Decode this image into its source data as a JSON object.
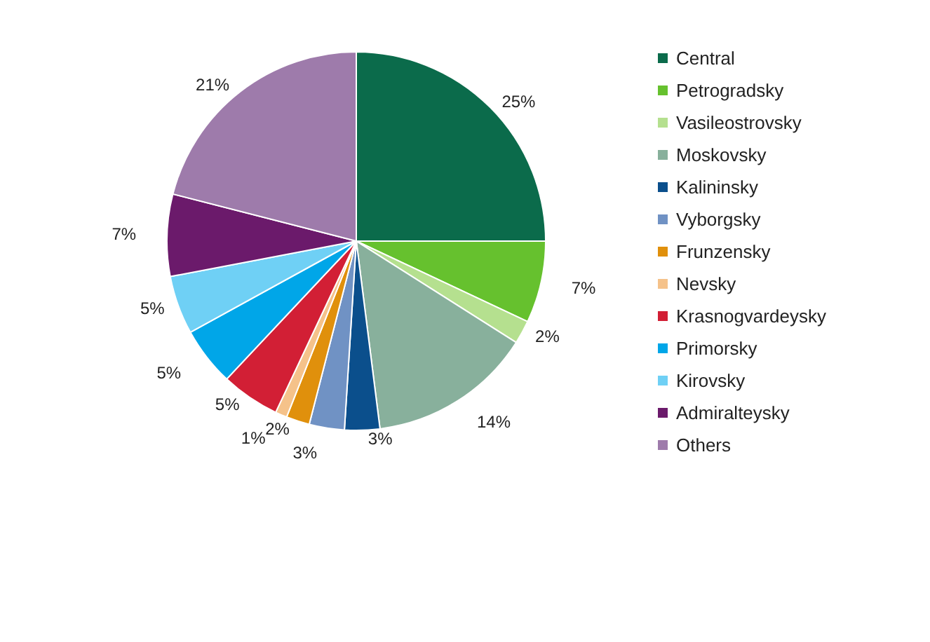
{
  "chart_data": {
    "type": "pie",
    "categories": [
      "Central",
      "Petrogradsky",
      "Vasileostrovsky",
      "Moskovsky",
      "Kalininsky",
      "Vyborgsky",
      "Frunzensky",
      "Nevsky",
      "Krasnogvardeysky",
      "Primorsky",
      "Kirovsky",
      "Admiralteysky",
      "Others"
    ],
    "values": [
      25,
      7,
      2,
      14,
      3,
      3,
      2,
      1,
      5,
      5,
      5,
      7,
      21
    ],
    "value_labels": [
      "25%",
      "7%",
      "2%",
      "14%",
      "3%",
      "3%",
      "2%",
      "1%",
      "5%",
      "5%",
      "5%",
      "7%",
      "21%"
    ],
    "colors": [
      "#0b6b4b",
      "#66c12e",
      "#b5e08f",
      "#88b09c",
      "#0b4f8c",
      "#7092c4",
      "#e0900c",
      "#f5c28a",
      "#d21f35",
      "#00a6e8",
      "#6fd0f5",
      "#6b1a6b",
      "#9e7bab"
    ],
    "legend": "right"
  }
}
